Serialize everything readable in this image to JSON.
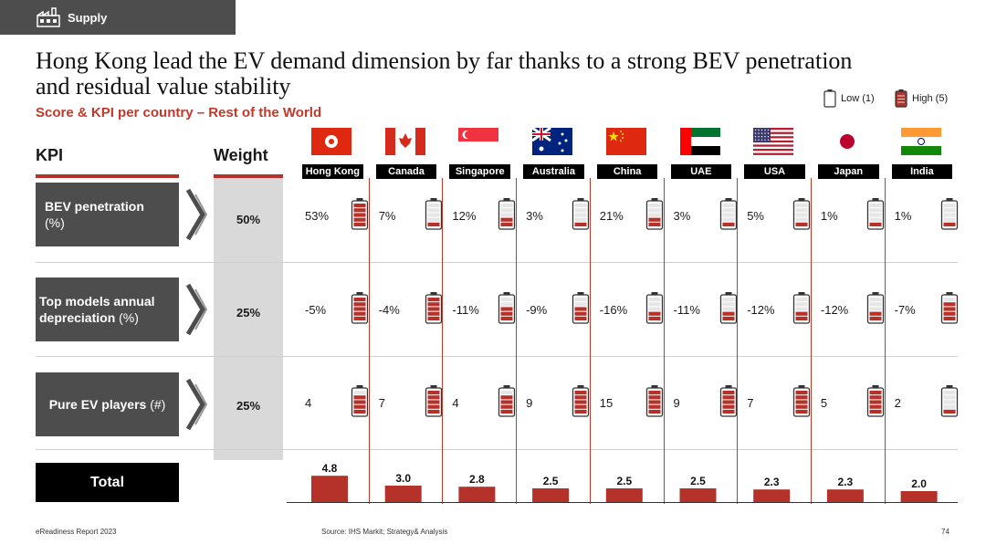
{
  "header": {
    "section_label": "Supply"
  },
  "title": "Hong Kong lead the EV demand dimension by far thanks to a strong BEV penetration and residual value stability",
  "subtitle": "Score & KPI per country – Rest of the World",
  "legend": {
    "low_label": "Low (1)",
    "high_label": "High (5)"
  },
  "table": {
    "kpi_header": "KPI",
    "weight_header": "Weight",
    "rows": [
      {
        "kpi_bold": "BEV penetration",
        "kpi_rest": "(%)",
        "weight": "50%"
      },
      {
        "kpi_bold": "Top models annual depreciation",
        "kpi_rest": " (%)",
        "weight": "25%"
      },
      {
        "kpi_bold": "Pure EV players",
        "kpi_rest": " (#)",
        "weight": "25%"
      }
    ],
    "total_label": "Total"
  },
  "countries": [
    {
      "name": "Hong Kong",
      "flag": "hong-kong",
      "kpis": [
        {
          "value": "53%",
          "level": 5
        },
        {
          "value": "-5%",
          "level": 5
        },
        {
          "value": "4",
          "level": 4
        }
      ]
    },
    {
      "name": "Canada",
      "flag": "canada",
      "kpis": [
        {
          "value": "7%",
          "level": 1
        },
        {
          "value": "-4%",
          "level": 5
        },
        {
          "value": "7",
          "level": 5
        }
      ]
    },
    {
      "name": "Singapore",
      "flag": "singapore",
      "kpis": [
        {
          "value": "12%",
          "level": 2
        },
        {
          "value": "-11%",
          "level": 3
        },
        {
          "value": "4",
          "level": 4
        }
      ]
    },
    {
      "name": "Australia",
      "flag": "australia",
      "kpis": [
        {
          "value": "3%",
          "level": 1
        },
        {
          "value": "-9%",
          "level": 3
        },
        {
          "value": "9",
          "level": 5
        }
      ]
    },
    {
      "name": "China",
      "flag": "china",
      "kpis": [
        {
          "value": "21%",
          "level": 2
        },
        {
          "value": "-16%",
          "level": 2
        },
        {
          "value": "15",
          "level": 5
        }
      ]
    },
    {
      "name": "UAE",
      "flag": "uae",
      "kpis": [
        {
          "value": "3%",
          "level": 1
        },
        {
          "value": "-11%",
          "level": 2
        },
        {
          "value": "9",
          "level": 5
        }
      ]
    },
    {
      "name": "USA",
      "flag": "usa",
      "kpis": [
        {
          "value": "5%",
          "level": 1
        },
        {
          "value": "-12%",
          "level": 2
        },
        {
          "value": "7",
          "level": 5
        }
      ]
    },
    {
      "name": "Japan",
      "flag": "japan",
      "kpis": [
        {
          "value": "1%",
          "level": 1
        },
        {
          "value": "-12%",
          "level": 2
        },
        {
          "value": "5",
          "level": 5
        }
      ]
    },
    {
      "name": "India",
      "flag": "india",
      "kpis": [
        {
          "value": "1%",
          "level": 1
        },
        {
          "value": "-7%",
          "level": 4
        },
        {
          "value": "2",
          "level": 1
        }
      ]
    }
  ],
  "chart_data": {
    "type": "bar",
    "title": "Total",
    "categories": [
      "Hong Kong",
      "Canada",
      "Singapore",
      "Australia",
      "China",
      "UAE",
      "USA",
      "Japan",
      "India"
    ],
    "values": [
      4.8,
      3.0,
      2.8,
      2.5,
      2.5,
      2.5,
      2.3,
      2.3,
      2.0
    ],
    "value_labels": [
      "4.8",
      "3.0",
      "2.8",
      "2.5",
      "2.5",
      "2.5",
      "2.3",
      "2.3",
      "2.0"
    ],
    "ylim": [
      0,
      5
    ]
  },
  "colors": {
    "accent": "#b5322a",
    "dark": "#4d4d4d",
    "battery_fill": "#b5322a",
    "battery_empty": "#e6e6e6"
  },
  "footer": {
    "left": "eReadiness Report 2023",
    "source": "Source: IHS Markit; Strategy& Analysis",
    "page": "74"
  }
}
